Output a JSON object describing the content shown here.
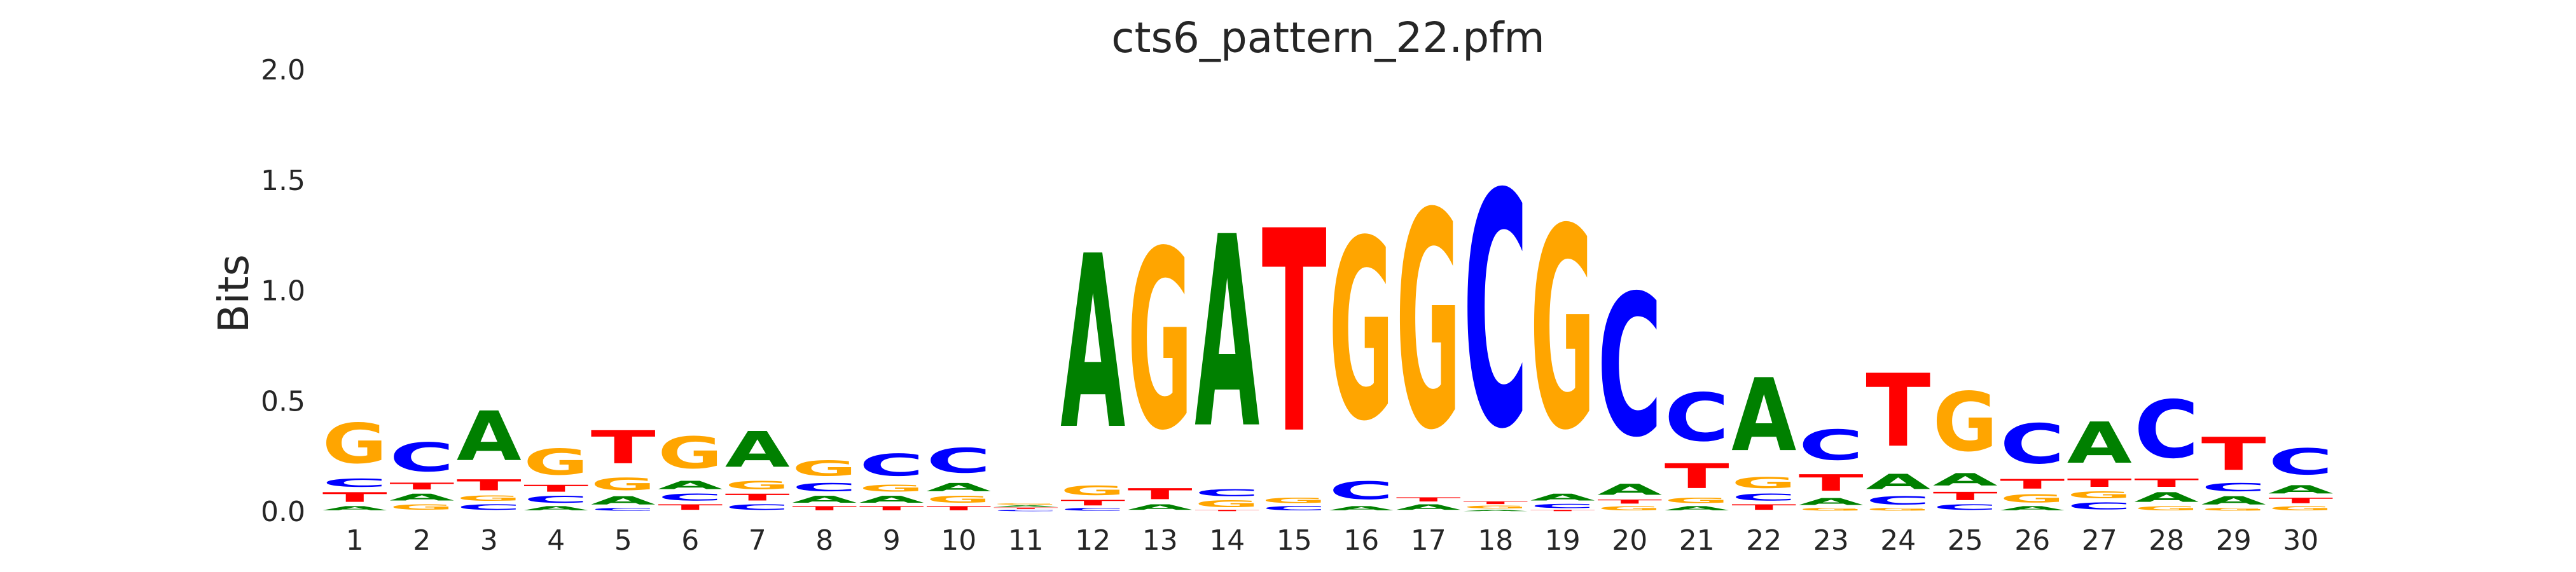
{
  "chart_data": {
    "type": "sequence_logo",
    "title": "cts6_pattern_22.pfm",
    "xlabel": "",
    "ylabel": "Bits",
    "ylim": [
      0,
      2.0
    ],
    "y_ticks": [
      "0.0",
      "0.5",
      "1.0",
      "1.5",
      "2.0"
    ],
    "y_tick_values": [
      0,
      0.5,
      1.0,
      1.5,
      2.0
    ],
    "x_tick_labels": [
      "1",
      "2",
      "3",
      "4",
      "5",
      "6",
      "7",
      "8",
      "9",
      "10",
      "11",
      "12",
      "13",
      "14",
      "15",
      "16",
      "17",
      "18",
      "19",
      "20",
      "21",
      "22",
      "23",
      "24",
      "25",
      "26",
      "27",
      "28",
      "29",
      "30"
    ],
    "grid": false,
    "letter_colors": {
      "A": "#008000",
      "C": "#0000ff",
      "G": "#ffa500",
      "T": "#ff0000"
    },
    "positions": [
      {
        "pos": 1,
        "letters": [
          {
            "l": "A",
            "h": 0.03
          },
          {
            "l": "T",
            "h": 0.07
          },
          {
            "l": "C",
            "h": 0.06
          },
          {
            "l": "G",
            "h": 0.29
          }
        ]
      },
      {
        "pos": 2,
        "letters": [
          {
            "l": "G",
            "h": 0.04
          },
          {
            "l": "A",
            "h": 0.05
          },
          {
            "l": "T",
            "h": 0.05
          },
          {
            "l": "C",
            "h": 0.21
          }
        ]
      },
      {
        "pos": 3,
        "letters": [
          {
            "l": "C",
            "h": 0.04
          },
          {
            "l": "G",
            "h": 0.04
          },
          {
            "l": "T",
            "h": 0.08
          },
          {
            "l": "A",
            "h": 0.36
          }
        ]
      },
      {
        "pos": 4,
        "letters": [
          {
            "l": "A",
            "h": 0.03
          },
          {
            "l": "C",
            "h": 0.05
          },
          {
            "l": "T",
            "h": 0.05
          },
          {
            "l": "G",
            "h": 0.19
          }
        ]
      },
      {
        "pos": 5,
        "letters": [
          {
            "l": "C",
            "h": 0.02
          },
          {
            "l": "A",
            "h": 0.06
          },
          {
            "l": "G",
            "h": 0.09
          },
          {
            "l": "T",
            "h": 0.24
          }
        ]
      },
      {
        "pos": 6,
        "letters": [
          {
            "l": "T",
            "h": 0.04
          },
          {
            "l": "C",
            "h": 0.05
          },
          {
            "l": "A",
            "h": 0.06
          },
          {
            "l": "G",
            "h": 0.23
          }
        ]
      },
      {
        "pos": 7,
        "letters": [
          {
            "l": "C",
            "h": 0.04
          },
          {
            "l": "T",
            "h": 0.05
          },
          {
            "l": "G",
            "h": 0.06
          },
          {
            "l": "A",
            "h": 0.26
          }
        ]
      },
      {
        "pos": 8,
        "letters": [
          {
            "l": "T",
            "h": 0.03
          },
          {
            "l": "A",
            "h": 0.05
          },
          {
            "l": "C",
            "h": 0.06
          },
          {
            "l": "G",
            "h": 0.11
          }
        ]
      },
      {
        "pos": 9,
        "letters": [
          {
            "l": "T",
            "h": 0.03
          },
          {
            "l": "A",
            "h": 0.05
          },
          {
            "l": "G",
            "h": 0.05
          },
          {
            "l": "C",
            "h": 0.16
          }
        ]
      },
      {
        "pos": 10,
        "letters": [
          {
            "l": "T",
            "h": 0.03
          },
          {
            "l": "G",
            "h": 0.05
          },
          {
            "l": "A",
            "h": 0.06
          },
          {
            "l": "C",
            "h": 0.18
          }
        ]
      },
      {
        "pos": 11,
        "letters": [
          {
            "l": "C",
            "h": 0.01
          },
          {
            "l": "T",
            "h": 0.01
          },
          {
            "l": "A",
            "h": 0.01
          },
          {
            "l": "G",
            "h": 0.01
          }
        ]
      },
      {
        "pos": 12,
        "letters": [
          {
            "l": "C",
            "h": 0.02
          },
          {
            "l": "T",
            "h": 0.04
          },
          {
            "l": "G",
            "h": 0.07
          },
          {
            "l": "A",
            "h": 1.26
          }
        ]
      },
      {
        "pos": 13,
        "letters": [
          {
            "l": "A",
            "h": 0.04
          },
          {
            "l": "T",
            "h": 0.08
          },
          {
            "l": "G",
            "h": 1.3
          }
        ]
      },
      {
        "pos": 14,
        "letters": [
          {
            "l": "T",
            "h": 0.01
          },
          {
            "l": "G",
            "h": 0.05
          },
          {
            "l": "C",
            "h": 0.05
          },
          {
            "l": "A",
            "h": 1.39
          }
        ]
      },
      {
        "pos": 15,
        "letters": [
          {
            "l": "C",
            "h": 0.03
          },
          {
            "l": "G",
            "h": 0.04
          },
          {
            "l": "T",
            "h": 1.47
          }
        ]
      },
      {
        "pos": 16,
        "letters": [
          {
            "l": "A",
            "h": 0.03
          },
          {
            "l": "C",
            "h": 0.13
          },
          {
            "l": "G",
            "h": 1.31
          }
        ]
      },
      {
        "pos": 17,
        "letters": [
          {
            "l": "A",
            "h": 0.04
          },
          {
            "l": "T",
            "h": 0.03
          },
          {
            "l": "G",
            "h": 1.57
          }
        ]
      },
      {
        "pos": 18,
        "letters": [
          {
            "l": "A",
            "h": 0.01
          },
          {
            "l": "G",
            "h": 0.02
          },
          {
            "l": "T",
            "h": 0.02
          },
          {
            "l": "C",
            "h": 1.7
          }
        ]
      },
      {
        "pos": 19,
        "letters": [
          {
            "l": "T",
            "h": 0.01
          },
          {
            "l": "C",
            "h": 0.03
          },
          {
            "l": "A",
            "h": 0.05
          },
          {
            "l": "G",
            "h": 1.46
          }
        ]
      },
      {
        "pos": 20,
        "letters": [
          {
            "l": "G",
            "h": 0.03
          },
          {
            "l": "T",
            "h": 0.03
          },
          {
            "l": "A",
            "h": 0.08
          },
          {
            "l": "C",
            "h": 1.03
          }
        ]
      },
      {
        "pos": 21,
        "letters": [
          {
            "l": "A",
            "h": 0.03
          },
          {
            "l": "G",
            "h": 0.04
          },
          {
            "l": "T",
            "h": 0.18
          },
          {
            "l": "C",
            "h": 0.35
          }
        ]
      },
      {
        "pos": 22,
        "letters": [
          {
            "l": "T",
            "h": 0.04
          },
          {
            "l": "C",
            "h": 0.05
          },
          {
            "l": "G",
            "h": 0.08
          },
          {
            "l": "A",
            "h": 0.53
          }
        ]
      },
      {
        "pos": 23,
        "letters": [
          {
            "l": "G",
            "h": 0.02
          },
          {
            "l": "A",
            "h": 0.05
          },
          {
            "l": "T",
            "h": 0.12
          },
          {
            "l": "C",
            "h": 0.22
          }
        ]
      },
      {
        "pos": 24,
        "letters": [
          {
            "l": "G",
            "h": 0.02
          },
          {
            "l": "C",
            "h": 0.06
          },
          {
            "l": "A",
            "h": 0.11
          },
          {
            "l": "T",
            "h": 0.53
          }
        ]
      },
      {
        "pos": 25,
        "letters": [
          {
            "l": "C",
            "h": 0.04
          },
          {
            "l": "T",
            "h": 0.06
          },
          {
            "l": "A",
            "h": 0.09
          },
          {
            "l": "G",
            "h": 0.43
          }
        ]
      },
      {
        "pos": 26,
        "letters": [
          {
            "l": "A",
            "h": 0.03
          },
          {
            "l": "G",
            "h": 0.06
          },
          {
            "l": "T",
            "h": 0.07
          },
          {
            "l": "C",
            "h": 0.29
          }
        ]
      },
      {
        "pos": 27,
        "letters": [
          {
            "l": "C",
            "h": 0.05
          },
          {
            "l": "G",
            "h": 0.05
          },
          {
            "l": "T",
            "h": 0.06
          },
          {
            "l": "A",
            "h": 0.3
          }
        ]
      },
      {
        "pos": 28,
        "letters": [
          {
            "l": "G",
            "h": 0.03
          },
          {
            "l": "A",
            "h": 0.07
          },
          {
            "l": "T",
            "h": 0.06
          },
          {
            "l": "C",
            "h": 0.42
          }
        ]
      },
      {
        "pos": 29,
        "letters": [
          {
            "l": "G",
            "h": 0.02
          },
          {
            "l": "A",
            "h": 0.06
          },
          {
            "l": "C",
            "h": 0.06
          },
          {
            "l": "T",
            "h": 0.24
          }
        ]
      },
      {
        "pos": 30,
        "letters": [
          {
            "l": "G",
            "h": 0.03
          },
          {
            "l": "T",
            "h": 0.04
          },
          {
            "l": "A",
            "h": 0.06
          },
          {
            "l": "C",
            "h": 0.19
          }
        ]
      }
    ]
  }
}
